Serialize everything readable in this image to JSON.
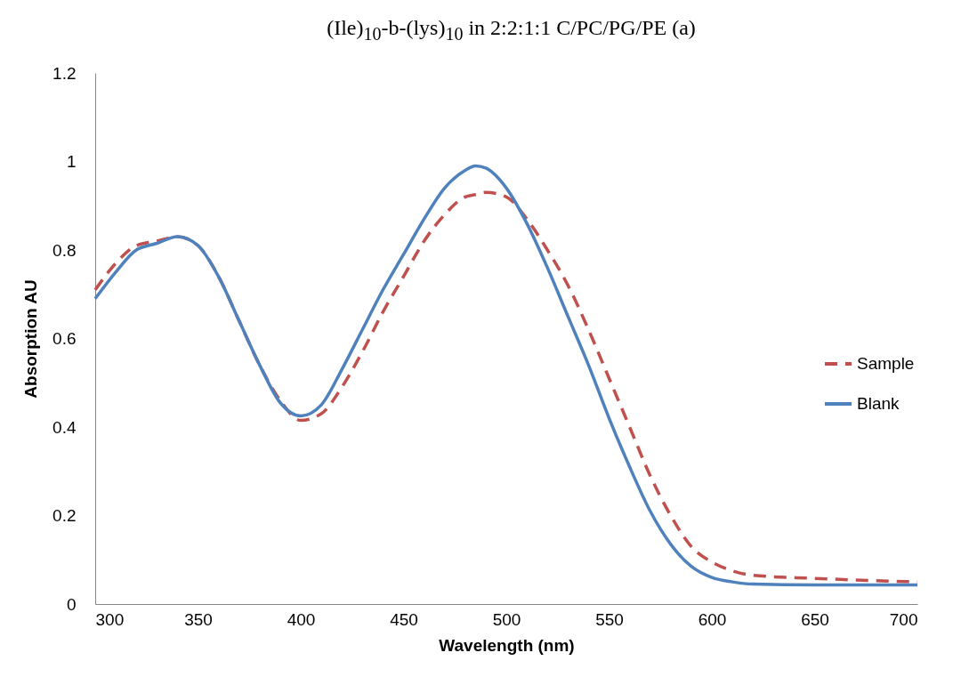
{
  "chart_data": {
    "type": "line",
    "title": "(Ile)$_{10}$-b-(lys)$_{10}$ in 2:2:1:1 C/PC/PG/PE (a)",
    "xlabel": "Wavelength (nm)",
    "ylabel": "Absorption AU",
    "xlim": [
      300,
      700
    ],
    "xticks": [
      300,
      350,
      400,
      450,
      500,
      550,
      600,
      650,
      700
    ],
    "ylim": [
      0,
      1.2
    ],
    "yticks": [
      0,
      0.2,
      0.4,
      0.6,
      0.8,
      1,
      1.2
    ],
    "grid": false,
    "legend": "right",
    "marker": "none",
    "x": [
      300,
      310,
      320,
      330,
      340,
      350,
      360,
      370,
      380,
      390,
      400,
      410,
      420,
      430,
      440,
      450,
      460,
      470,
      480,
      485,
      490,
      500,
      510,
      520,
      530,
      540,
      550,
      560,
      570,
      580,
      590,
      600,
      610,
      620,
      650,
      700
    ],
    "series": [
      {
        "name": "Sample",
        "color": "#c0504d",
        "line_style": "dashed",
        "values": [
          0.71,
          0.77,
          0.81,
          0.82,
          0.83,
          0.81,
          0.74,
          0.64,
          0.54,
          0.46,
          0.415,
          0.43,
          0.49,
          0.57,
          0.66,
          0.74,
          0.82,
          0.88,
          0.92,
          0.925,
          0.93,
          0.92,
          0.87,
          0.8,
          0.72,
          0.62,
          0.51,
          0.4,
          0.29,
          0.2,
          0.13,
          0.095,
          0.075,
          0.065,
          0.058,
          0.05
        ]
      },
      {
        "name": "Blank",
        "color": "#4f81bd",
        "line_style": "solid",
        "values": [
          0.69,
          0.75,
          0.8,
          0.815,
          0.83,
          0.81,
          0.74,
          0.64,
          0.54,
          0.455,
          0.425,
          0.45,
          0.53,
          0.62,
          0.71,
          0.79,
          0.87,
          0.94,
          0.98,
          0.99,
          0.985,
          0.94,
          0.86,
          0.76,
          0.65,
          0.54,
          0.42,
          0.31,
          0.21,
          0.135,
          0.085,
          0.06,
          0.05,
          0.045,
          0.043,
          0.043
        ]
      }
    ]
  }
}
